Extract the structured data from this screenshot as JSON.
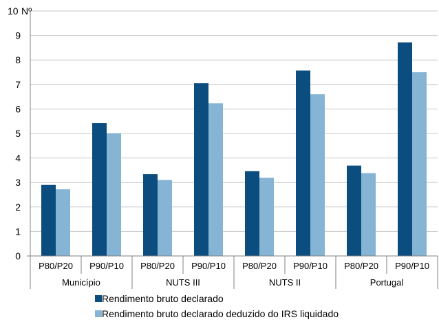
{
  "chart_data": {
    "type": "bar",
    "y_unit_label": "Nº",
    "ylim": [
      0,
      10
    ],
    "yticks": [
      0,
      1,
      2,
      3,
      4,
      5,
      6,
      7,
      8,
      9,
      10
    ],
    "grid": true,
    "legend_position": "bottom",
    "groups": [
      {
        "label": "Município",
        "categories": [
          "P80/P20",
          "P90/P10"
        ]
      },
      {
        "label": "NUTS III",
        "categories": [
          "P80/P20",
          "P90/P10"
        ]
      },
      {
        "label": "NUTS II",
        "categories": [
          "P80/P20",
          "P90/P10"
        ]
      },
      {
        "label": "Portugal",
        "categories": [
          "P80/P20",
          "P90/P10"
        ]
      }
    ],
    "series": [
      {
        "name": "Rendimento bruto declarado",
        "color": "#0b4d7e",
        "values": [
          2.9,
          5.42,
          3.34,
          7.05,
          3.46,
          7.57,
          3.69,
          8.72
        ]
      },
      {
        "name": "Rendimento bruto declarado deduzido do IRS liquidado",
        "color": "#86b4d4",
        "values": [
          2.72,
          5.01,
          3.1,
          6.23,
          3.19,
          6.6,
          3.38,
          7.5
        ]
      }
    ]
  }
}
